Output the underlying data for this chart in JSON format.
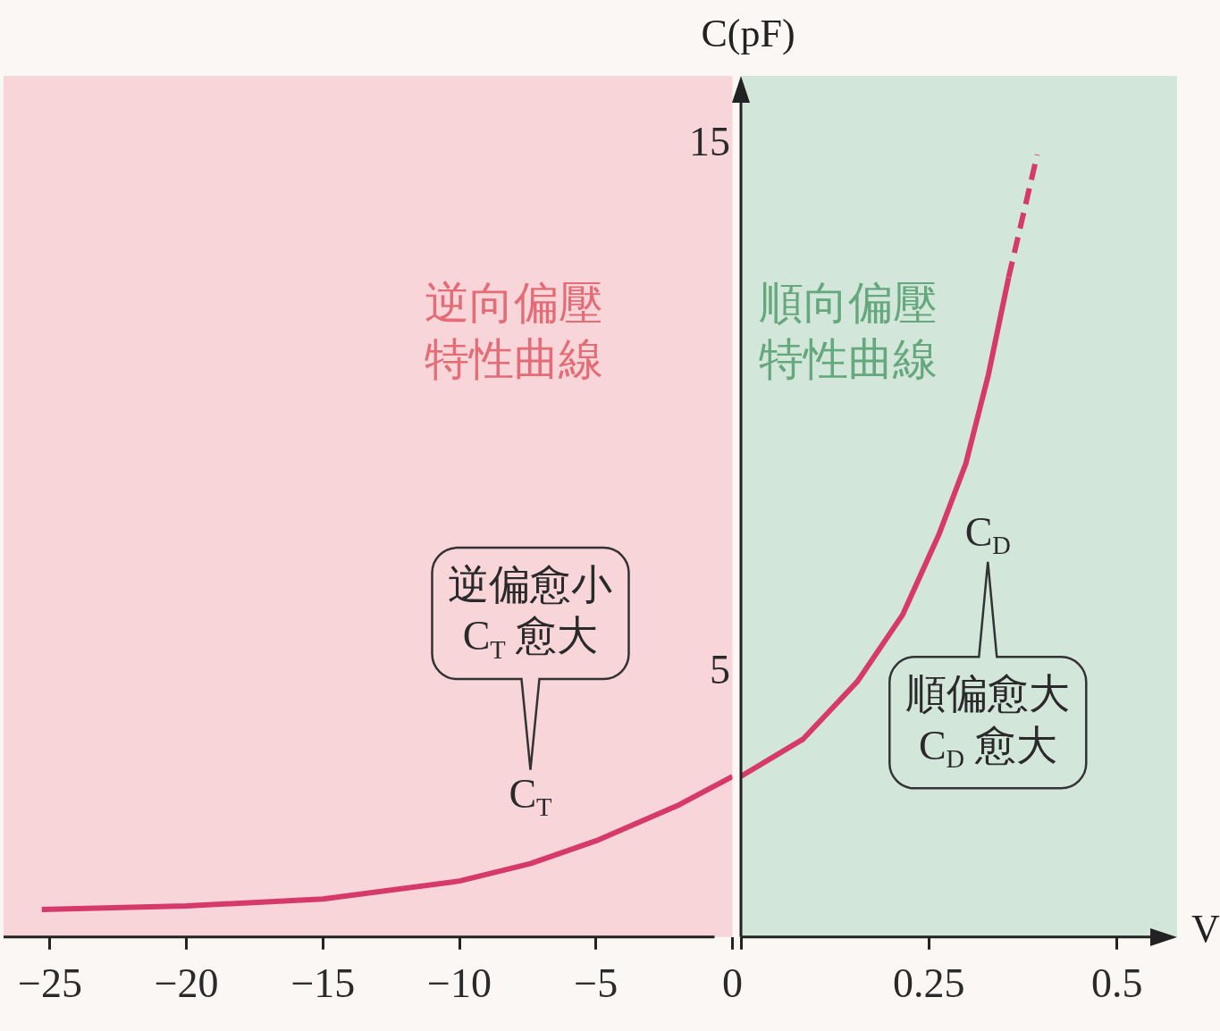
{
  "chart_data": [
    {
      "type": "line",
      "xlim": [
        -26.7,
        0
      ],
      "ylim": [
        0,
        16.3
      ],
      "xticks": [
        {
          "value": -25,
          "label": "−25"
        },
        {
          "value": -20,
          "label": "−20"
        },
        {
          "value": -15,
          "label": "−15"
        },
        {
          "value": -10,
          "label": "−10"
        },
        {
          "value": -5,
          "label": "−5"
        },
        0
      ],
      "tick_labels": "x",
      "legend": false,
      "marker": "none",
      "series": [
        {
          "name": "C$_{T}$",
          "color": "#d63a6a",
          "line_style": "solid",
          "x": [
            -25.3,
            -20,
            -15,
            -10,
            -7.4,
            -5,
            -2,
            0
          ],
          "values": [
            0.52,
            0.59,
            0.72,
            1.06,
            1.39,
            1.82,
            2.49,
            3.04
          ]
        }
      ],
      "bands": [
        {
          "axis": "x",
          "from": -26.7,
          "to": 0,
          "color": "#f7d5d8",
          "label": "逆向偏壓特性曲線"
        }
      ],
      "annotations": [
        "逆偏愈小C$_{T}$ 愈大"
      ]
    },
    {
      "type": "line",
      "xlim": [
        0,
        0.58
      ],
      "ylim": [
        0,
        16.3
      ],
      "xticks": [
        {
          "value": 0,
          "label": null
        },
        0.25,
        0.5
      ],
      "yticks": [
        5,
        15
      ],
      "xlabel": "V",
      "ylabel": "C(pF)",
      "legend": false,
      "marker": "none",
      "series": [
        {
          "name": "C$_{D}$",
          "color": "#d63a6a",
          "line_style": "solid",
          "x": [
            0,
            0.083,
            0.155,
            0.215,
            0.263,
            0.299,
            0.329,
            0.356
          ],
          "values": [
            3.04,
            3.75,
            4.84,
            6.1,
            7.61,
            8.96,
            10.64,
            12.49
          ]
        },
        {
          "color": "#d63a6a",
          "line_style": "dashed",
          "x": [
            0.356,
            0.394
          ],
          "values": [
            12.49,
            14.81
          ]
        }
      ],
      "bands": [
        {
          "axis": "x",
          "from": 0,
          "to": 0.58,
          "color": "#d3e6da",
          "label": "順向偏壓特性曲線"
        }
      ],
      "annotations": [
        "順偏愈大C$_{D}$ 愈大"
      ]
    }
  ]
}
